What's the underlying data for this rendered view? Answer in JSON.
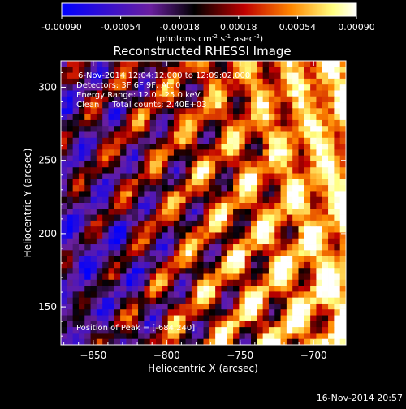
{
  "chart_data": {
    "type": "heatmap",
    "title": "Reconstructed RHESSI Image",
    "xlabel": "Heliocentric X (arcsec)",
    "ylabel": "Heliocentric Y (arcsec)",
    "xlim": [
      -872,
      -678
    ],
    "ylim": [
      124,
      318
    ],
    "x_ticks": [
      -850,
      -800,
      -750,
      -700
    ],
    "y_ticks": [
      150,
      200,
      250,
      300
    ],
    "colorbar": {
      "range": [
        -0.0009,
        0.0009
      ],
      "ticks": [
        "-0.00090",
        "-0.00054",
        "-0.00018",
        "0.00018",
        "0.00054",
        "0.00090"
      ],
      "tick_values": [
        -0.0009,
        -0.00054,
        -0.00018,
        0.00018,
        0.00054,
        0.0009
      ],
      "unit_prefix": "(photons cm",
      "unit_exp1": "-2",
      "unit_mid": " s",
      "unit_exp2": "-1",
      "unit_mid2": " asec",
      "unit_exp3": "-2",
      "unit_suffix": ")",
      "colors": [
        "#0000ff",
        "#6a1fa0",
        "#000000",
        "#c00000",
        "#ff8800",
        "#ffff80",
        "#ffffff"
      ]
    },
    "annotations": [
      "6-Nov-2014 12:04:12.000 to 12:09:02.000",
      "Detectors: 3F 6F 9F, Att 0",
      "Energy Range: 12.0 - 25.0 keV",
      "Clean     Total counts: 2.40E+03"
    ],
    "peak_label": "Position of Peak = [-684,240]",
    "peak": [
      -684,
      240
    ]
  },
  "footer_date": "16-Nov-2014 20:57"
}
